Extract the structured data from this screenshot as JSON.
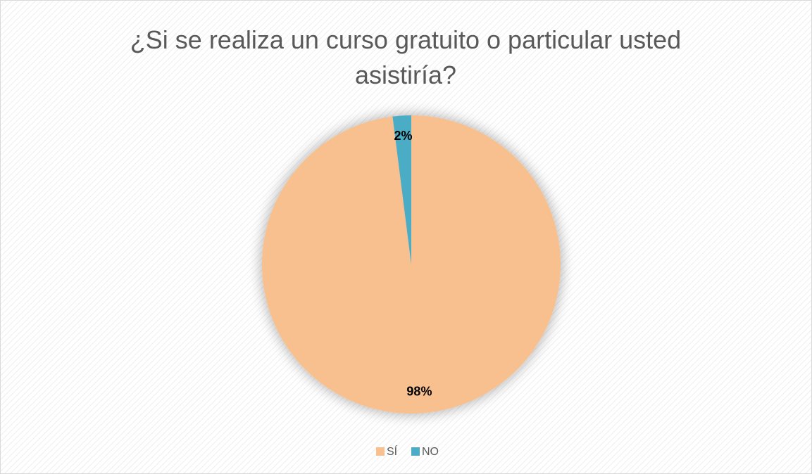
{
  "chart_data": {
    "type": "pie",
    "title": "¿Si se realiza un curso gratuito o particular usted asistiría?",
    "categories": [
      "SÍ",
      "NO"
    ],
    "values": [
      98,
      2
    ],
    "value_labels": [
      "98%",
      "2%"
    ],
    "colors": [
      "#f8bf8f",
      "#4bacc6"
    ],
    "legend": "bottom"
  }
}
